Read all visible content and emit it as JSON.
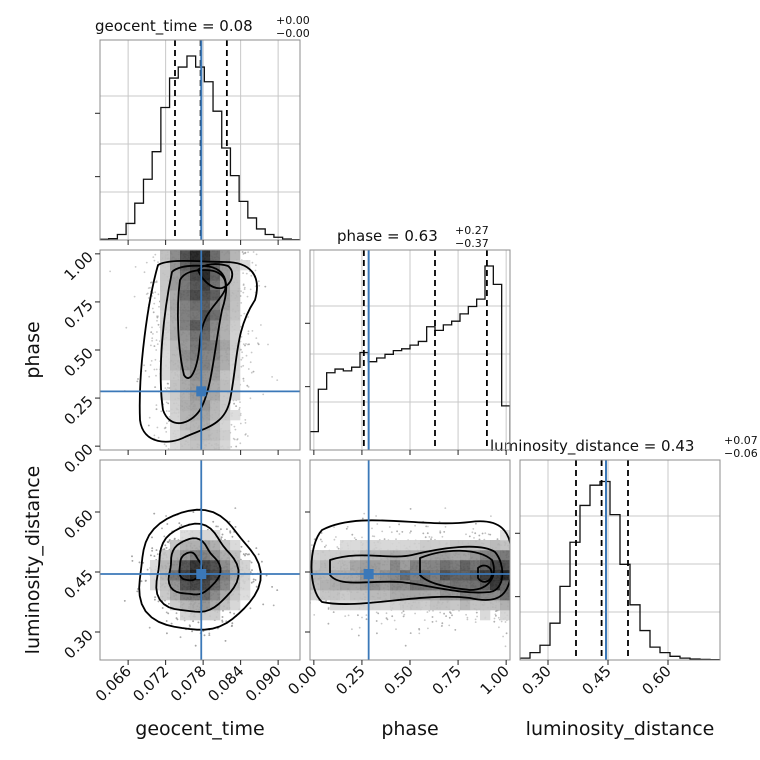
{
  "chart_data": {
    "type": "corner",
    "colors": {
      "truth": "#3b78b8",
      "hist": "#111111",
      "grid": "#c8c8c8",
      "frame": "#8c8c8c",
      "samples": "#9a9a9a"
    },
    "parameters": [
      {
        "name": "geocent_time",
        "xlabel": "geocent_time",
        "title": {
          "main": "geocent_time = 0.08",
          "upper": "+0.00",
          "lower": "−0.00"
        },
        "range": [
          0.0615,
          0.0935
        ],
        "truth": 0.0777,
        "quantiles": [
          0.0735,
          0.0776,
          0.0818
        ],
        "ticks": [
          0.066,
          0.072,
          0.078,
          0.084,
          0.09
        ],
        "tick_labels": [
          "0.066",
          "0.072",
          "0.078",
          "0.084",
          "0.090"
        ],
        "hist": [
          0.4,
          0.7,
          3,
          9,
          20,
          33,
          48,
          72,
          88,
          94,
          100,
          94,
          86,
          70,
          50,
          35,
          21,
          12,
          6,
          3,
          1.5,
          0.5,
          0.2
        ]
      },
      {
        "name": "phase",
        "xlabel": "phase",
        "ylabel": "phase",
        "title": {
          "main": "phase = 0.63",
          "upper": "+0.27",
          "lower": "−0.37"
        },
        "range": [
          -0.02,
          1.02
        ],
        "truth": 0.285,
        "quantiles": [
          0.26,
          0.63,
          0.9
        ],
        "ticks": [
          0.0,
          0.25,
          0.5,
          0.75,
          1.0
        ],
        "tick_labels": [
          "0.00",
          "0.25",
          "0.50",
          "0.75",
          "1.00"
        ],
        "hist": [
          10,
          33,
          42,
          44,
          43,
          45,
          53,
          48,
          50,
          52,
          54,
          55,
          57,
          59,
          67,
          65,
          68,
          70,
          74,
          78,
          82,
          100,
          90,
          24
        ]
      },
      {
        "name": "luminosity_distance",
        "xlabel": "luminosity_distance",
        "ylabel": "luminosity_distance",
        "title": {
          "main": "luminosity_distance = 0.43",
          "upper": "+0.07",
          "lower": "−0.06"
        },
        "range": [
          0.23,
          0.73
        ],
        "truth": 0.445,
        "quantiles": [
          0.37,
          0.434,
          0.5
        ],
        "ticks": [
          0.3,
          0.45,
          0.6
        ],
        "tick_labels": [
          "0.30",
          "0.45",
          "0.60"
        ],
        "hist": [
          1,
          4,
          8,
          20,
          40,
          64,
          84,
          95,
          97,
          79,
          52,
          30,
          16,
          7,
          4,
          2,
          1,
          0.5,
          0.3,
          0.2
        ]
      }
    ],
    "pairs": [
      {
        "x": "geocent_time",
        "y": "phase"
      },
      {
        "x": "geocent_time",
        "y": "luminosity_distance"
      },
      {
        "x": "phase",
        "y": "luminosity_distance"
      }
    ]
  }
}
